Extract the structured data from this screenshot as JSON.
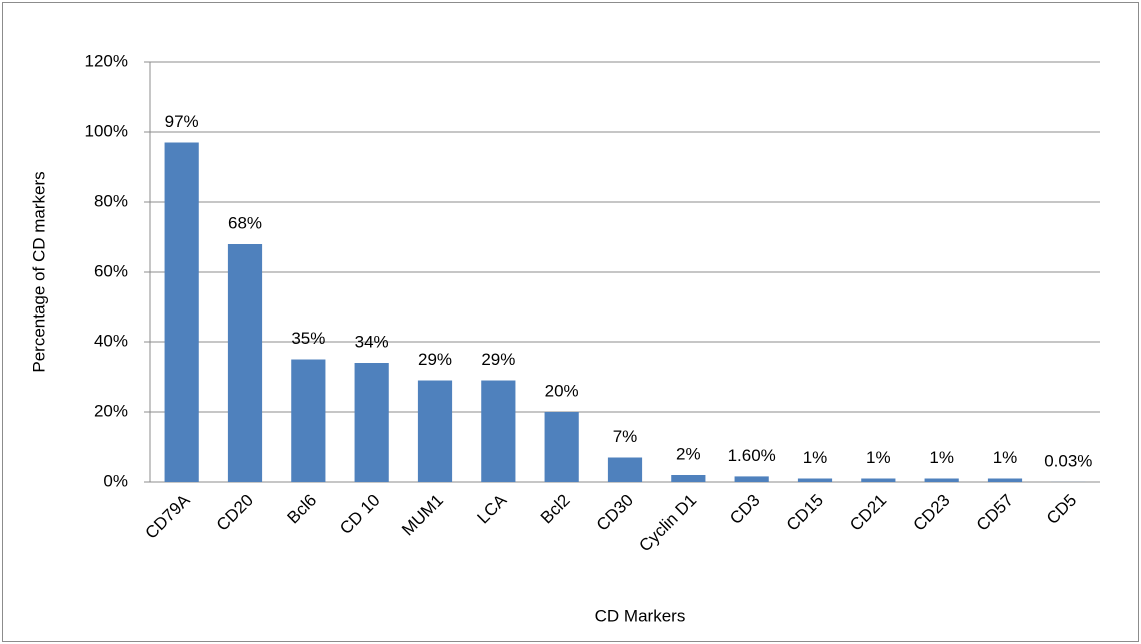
{
  "chart_data": {
    "type": "bar",
    "x_label": "CD Markers",
    "y_label": "Percentage of CD markers",
    "categories": [
      "CD79A",
      "CD20",
      "Bcl6",
      "CD 10",
      "MUM1",
      "LCA",
      "Bcl2",
      "CD30",
      "Cyclin D1",
      "CD3",
      "CD15",
      "CD21",
      "CD23",
      "CD57",
      "CD5"
    ],
    "values": [
      97,
      68,
      35,
      34,
      29,
      29,
      20,
      7,
      2,
      1.6,
      1,
      1,
      1,
      1,
      0.03
    ],
    "value_labels": [
      "97%",
      "68%",
      "35%",
      "34%",
      "29%",
      "29%",
      "20%",
      "7%",
      "2%",
      "1.60%",
      "1%",
      "1%",
      "1%",
      "1%",
      "0.03%"
    ],
    "color": "#4f81bd",
    "ylim": [
      0,
      120
    ],
    "yticks": [
      {
        "value": 0,
        "label": "0%"
      },
      {
        "value": 20,
        "label": "20%"
      },
      {
        "value": 40,
        "label": "40%"
      },
      {
        "value": 60,
        "label": "60%"
      },
      {
        "value": 80,
        "label": "80%"
      },
      {
        "value": 100,
        "label": "100%"
      },
      {
        "value": 120,
        "label": "120%"
      }
    ],
    "grid": true
  }
}
